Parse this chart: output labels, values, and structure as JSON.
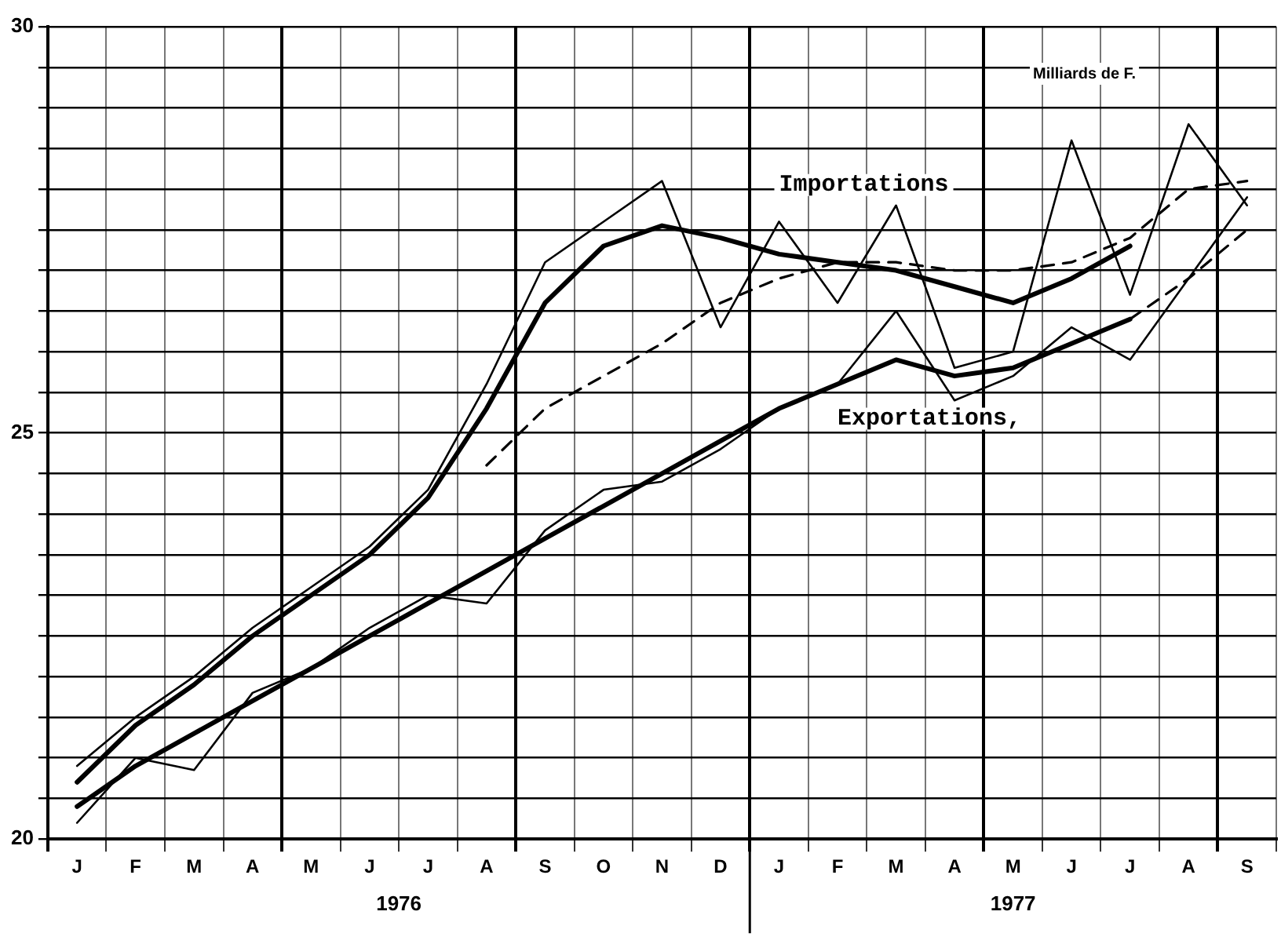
{
  "chart_data": {
    "type": "line",
    "categories": [
      "J",
      "F",
      "M",
      "A",
      "M",
      "J",
      "J",
      "A",
      "S",
      "O",
      "N",
      "D",
      "J",
      "F",
      "M",
      "A",
      "M",
      "J",
      "J",
      "A",
      "S"
    ],
    "series": [
      {
        "color": "#000000",
        "values": [
          20.9,
          21.5,
          22.0,
          22.6,
          23.1,
          23.6,
          24.3,
          25.6,
          27.1,
          27.6,
          28.1,
          26.3,
          27.6,
          26.6,
          27.8,
          25.8,
          26.0,
          28.6,
          26.7,
          28.8,
          27.8
        ]
      },
      {
        "name": "Importations",
        "color": "#000000",
        "values": [
          20.7,
          21.4,
          21.9,
          22.5,
          23.0,
          23.5,
          24.2,
          25.3,
          26.6,
          27.3,
          27.55,
          27.4,
          27.2,
          27.1,
          27.0,
          26.8,
          26.6,
          26.9,
          27.3,
          null,
          null
        ]
      },
      {
        "color": "#000000",
        "line_style": "dashed",
        "values": [
          null,
          null,
          null,
          null,
          null,
          null,
          null,
          24.6,
          25.3,
          25.7,
          26.1,
          26.6,
          26.9,
          27.1,
          27.1,
          27.0,
          27.0,
          27.1,
          27.4,
          28.0,
          28.1
        ]
      },
      {
        "color": "#000000",
        "values": [
          20.2,
          21.0,
          20.85,
          21.8,
          22.1,
          22.6,
          23.0,
          22.9,
          23.8,
          24.3,
          24.4,
          24.8,
          25.3,
          25.6,
          26.5,
          25.4,
          25.7,
          26.3,
          25.9,
          26.9,
          27.9
        ]
      },
      {
        "name": "Exportations,",
        "color": "#000000",
        "values": [
          20.4,
          20.9,
          21.3,
          21.7,
          22.1,
          22.5,
          22.9,
          23.3,
          23.7,
          24.1,
          24.5,
          24.9,
          25.3,
          25.6,
          25.9,
          25.7,
          25.8,
          26.1,
          26.4,
          null,
          null
        ]
      },
      {
        "color": "#000000",
        "line_style": "dashed",
        "values": [
          null,
          null,
          null,
          null,
          null,
          null,
          null,
          null,
          null,
          null,
          null,
          null,
          null,
          null,
          null,
          null,
          null,
          null,
          26.4,
          26.9,
          27.5
        ]
      }
    ],
    "ylim": [
      20,
      30
    ],
    "yticks": [
      20,
      {
        "value": 20.5,
        "label": null
      },
      {
        "value": 21,
        "label": null
      },
      {
        "value": 21.5,
        "label": null
      },
      {
        "value": 22,
        "label": null
      },
      {
        "value": 22.5,
        "label": null
      },
      {
        "value": 23,
        "label": null
      },
      {
        "value": 23.5,
        "label": null
      },
      {
        "value": 24,
        "label": null
      },
      {
        "value": 24.5,
        "label": null
      },
      25,
      {
        "value": 25.5,
        "label": null
      },
      {
        "value": 26,
        "label": null
      },
      {
        "value": 26.5,
        "label": null
      },
      {
        "value": 27,
        "label": null
      },
      {
        "value": 27.5,
        "label": null
      },
      {
        "value": 28,
        "label": null
      },
      {
        "value": 28.5,
        "label": null
      },
      {
        "value": 29,
        "label": null
      },
      {
        "value": 29.5,
        "label": null
      },
      30
    ],
    "grid": true,
    "legend": false,
    "marker": "none",
    "line_style": "solid",
    "annotations": [
      "Milliards de F.",
      "1976",
      "1977"
    ]
  }
}
